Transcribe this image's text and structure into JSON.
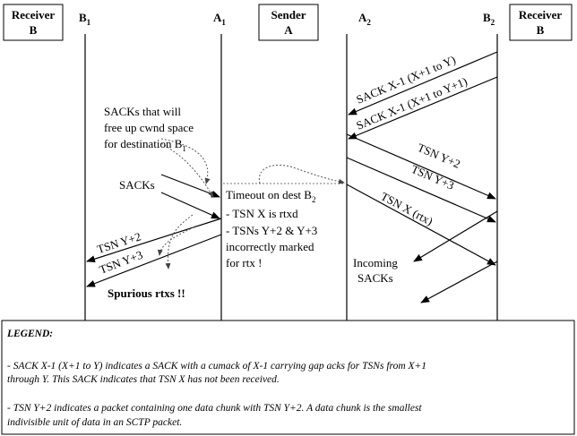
{
  "boxes": [
    {
      "lines": [
        "Receiver",
        "B"
      ]
    },
    {
      "lines": [
        "Sender",
        "A"
      ]
    },
    {
      "lines": [
        "Receiver",
        "B"
      ]
    }
  ],
  "lanes": [
    {
      "name": "B",
      "sub": "1"
    },
    {
      "name": "A",
      "sub": "1"
    },
    {
      "name": "A",
      "sub": "2"
    },
    {
      "name": "B",
      "sub": "2"
    }
  ],
  "messages": [
    "SACK X-1 (X+1 to Y)",
    "SACK X-1 (X+1 to Y+1)",
    "TSN Y+2",
    "TSN Y+3",
    "TSN X (rtx)",
    "TSN Y+2",
    "TSN Y+3"
  ],
  "annotations": {
    "free_sacks": {
      "lines": [
        "SACKs that will",
        "free up cwnd space",
        "for destination B"
      ],
      "sub": "1"
    },
    "sacks": "SACKs",
    "timeout": {
      "first": "Timeout on dest B",
      "sub": "2",
      "lines": [
        "- TSN X is rtxd",
        "- TSNs Y+2  & Y+3",
        "incorrectly marked",
        "for rtx !"
      ]
    },
    "incoming": [
      "Incoming",
      "SACKs"
    ],
    "spurious": "Spurious rtxs !!"
  },
  "legend": {
    "title": "LEGEND:",
    "paragraphs": [
      [
        "- SACK X-1 (X+1 to Y) indicates a SACK with a cumack of X-1 carrying gap acks for TSNs from X+1",
        "through Y. This SACK indicates that TSN X has not been received."
      ],
      [
        "- TSN Y+2 indicates a packet containing one data chunk with TSN Y+2. A data chunk is the smallest",
        "indivisible unit of data in an SCTP packet."
      ]
    ]
  }
}
